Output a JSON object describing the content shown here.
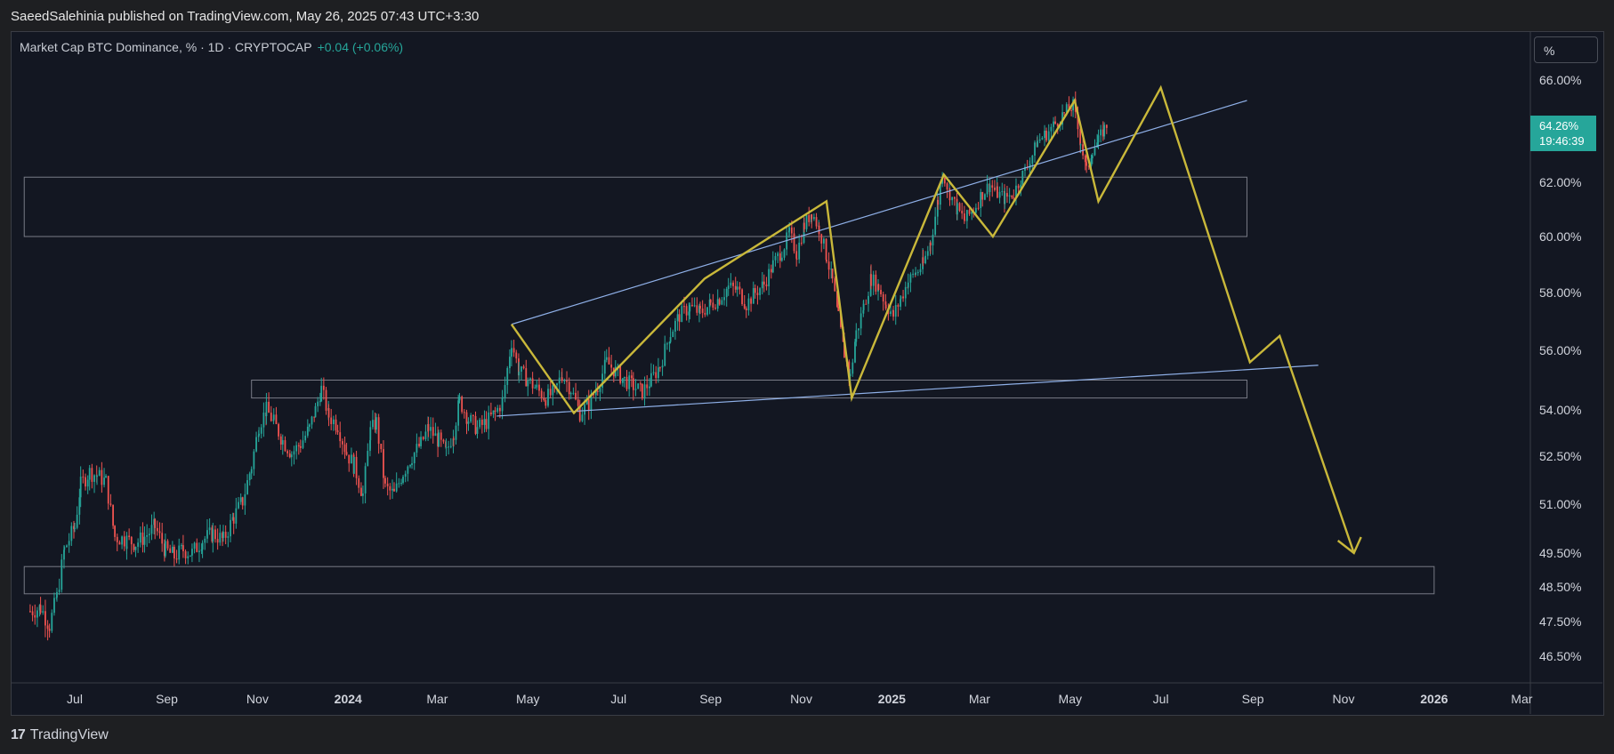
{
  "header": {
    "published_text": "SaeedSalehinia published on TradingView.com, May 26, 2025 07:43 UTC+3:30"
  },
  "legend": {
    "symbol_text": "Market Cap BTC Dominance, % · 1D · CRYPTOCAP",
    "change_text": "+0.04 (+0.06%)"
  },
  "scale_button": {
    "label": "%"
  },
  "last_price": {
    "value": "64.26%",
    "countdown": "19:46:39"
  },
  "footer": {
    "brand": "TradingView",
    "logo_glyph": "17"
  },
  "colors": {
    "background": "#131722",
    "page": "#1e1f22",
    "up": "#26a69a",
    "down": "#ef5350",
    "trendline": "#8fb0e8",
    "projection": "#c9b83a",
    "zone": "#787b86",
    "axis_text": "#d1d4dc"
  },
  "chart_data": {
    "type": "candlestick",
    "x_tick_labels": [
      "Jul",
      "Sep",
      "Nov",
      "2024",
      "Mar",
      "May",
      "Jul",
      "Sep",
      "Nov",
      "2025",
      "Mar",
      "May",
      "Jul",
      "Sep",
      "Nov",
      "2026",
      "Mar"
    ],
    "x_ticks_t": [
      "2023-07",
      "2023-09",
      "2023-11",
      "2024-01",
      "2024-03",
      "2024-05",
      "2024-07",
      "2024-09",
      "2024-11",
      "2025-01",
      "2025-03",
      "2025-05",
      "2025-07",
      "2025-09",
      "2025-11",
      "2026-01",
      "2026-03"
    ],
    "y_tick_labels": [
      "66.00%",
      "62.00%",
      "60.00%",
      "58.00%",
      "56.00%",
      "54.00%",
      "52.50%",
      "51.00%",
      "49.50%",
      "48.50%",
      "47.50%",
      "46.50%"
    ],
    "y_tick_values": [
      66,
      62,
      60,
      58,
      56,
      54,
      52.5,
      51,
      49.5,
      48.5,
      47.5,
      46.5
    ],
    "price_series": [
      [
        "2023-06-01",
        47.8
      ],
      [
        "2023-06-08",
        47.9
      ],
      [
        "2023-06-14",
        47.4
      ],
      [
        "2023-06-19",
        48.2
      ],
      [
        "2023-06-24",
        49.6
      ],
      [
        "2023-07-01",
        50.3
      ],
      [
        "2023-07-05",
        51.6
      ],
      [
        "2023-07-11",
        52.0
      ],
      [
        "2023-07-16",
        51.9
      ],
      [
        "2023-07-22",
        51.7
      ],
      [
        "2023-07-28",
        50.0
      ],
      [
        "2023-08-05",
        49.9
      ],
      [
        "2023-08-11",
        49.8
      ],
      [
        "2023-08-17",
        50.0
      ],
      [
        "2023-08-24",
        50.3
      ],
      [
        "2023-08-31",
        49.6
      ],
      [
        "2023-09-06",
        49.4
      ],
      [
        "2023-09-12",
        49.6
      ],
      [
        "2023-09-18",
        49.5
      ],
      [
        "2023-09-25",
        49.9
      ],
      [
        "2023-10-02",
        50.1
      ],
      [
        "2023-10-09",
        49.9
      ],
      [
        "2023-10-16",
        50.6
      ],
      [
        "2023-10-22",
        51.1
      ],
      [
        "2023-10-28",
        52.2
      ],
      [
        "2023-11-02",
        53.5
      ],
      [
        "2023-11-07",
        54.0
      ],
      [
        "2023-11-12",
        53.6
      ],
      [
        "2023-11-18",
        53.0
      ],
      [
        "2023-11-24",
        52.6
      ],
      [
        "2023-11-30",
        52.9
      ],
      [
        "2023-12-06",
        53.4
      ],
      [
        "2023-12-10",
        54.0
      ],
      [
        "2023-12-14",
        54.7
      ],
      [
        "2023-12-19",
        53.8
      ],
      [
        "2023-12-25",
        53.5
      ],
      [
        "2023-12-31",
        52.6
      ],
      [
        "2024-01-05",
        52.2
      ],
      [
        "2024-01-11",
        51.3
      ],
      [
        "2024-01-16",
        53.3
      ],
      [
        "2024-01-20",
        53.6
      ],
      [
        "2024-01-26",
        51.5
      ],
      [
        "2024-02-01",
        51.3
      ],
      [
        "2024-02-07",
        52.0
      ],
      [
        "2024-02-13",
        52.5
      ],
      [
        "2024-02-19",
        52.9
      ],
      [
        "2024-02-24",
        53.4
      ],
      [
        "2024-03-02",
        53.0
      ],
      [
        "2024-03-07",
        52.6
      ],
      [
        "2024-03-12",
        53.3
      ],
      [
        "2024-03-16",
        54.3
      ],
      [
        "2024-03-22",
        53.7
      ],
      [
        "2024-03-28",
        53.4
      ],
      [
        "2024-04-03",
        53.6
      ],
      [
        "2024-04-09",
        53.9
      ],
      [
        "2024-04-14",
        54.3
      ],
      [
        "2024-04-20",
        56.3
      ],
      [
        "2024-04-25",
        55.3
      ],
      [
        "2024-05-01",
        55.0
      ],
      [
        "2024-05-07",
        54.7
      ],
      [
        "2024-05-13",
        54.4
      ],
      [
        "2024-05-19",
        54.6
      ],
      [
        "2024-05-24",
        55.2
      ],
      [
        "2024-05-30",
        54.7
      ],
      [
        "2024-06-05",
        53.9
      ],
      [
        "2024-06-11",
        54.2
      ],
      [
        "2024-06-17",
        54.8
      ],
      [
        "2024-06-23",
        55.6
      ],
      [
        "2024-06-29",
        55.3
      ],
      [
        "2024-07-05",
        55.0
      ],
      [
        "2024-07-11",
        54.8
      ],
      [
        "2024-07-17",
        54.6
      ],
      [
        "2024-07-23",
        55.0
      ],
      [
        "2024-07-29",
        55.5
      ],
      [
        "2024-08-05",
        56.6
      ],
      [
        "2024-08-11",
        57.2
      ],
      [
        "2024-08-18",
        57.5
      ],
      [
        "2024-08-25",
        57.3
      ],
      [
        "2024-09-01",
        57.6
      ],
      [
        "2024-09-07",
        57.8
      ],
      [
        "2024-09-13",
        58.2
      ],
      [
        "2024-09-19",
        58.1
      ],
      [
        "2024-09-25",
        57.6
      ],
      [
        "2024-10-01",
        58.0
      ],
      [
        "2024-10-07",
        58.3
      ],
      [
        "2024-10-13",
        59.0
      ],
      [
        "2024-10-19",
        59.5
      ],
      [
        "2024-10-24",
        60.1
      ],
      [
        "2024-10-29",
        59.4
      ],
      [
        "2024-11-03",
        60.4
      ],
      [
        "2024-11-08",
        60.9
      ],
      [
        "2024-11-13",
        60.3
      ],
      [
        "2024-11-18",
        59.3
      ],
      [
        "2024-11-22",
        58.4
      ],
      [
        "2024-11-26",
        57.1
      ],
      [
        "2024-11-30",
        55.9
      ],
      [
        "2024-12-04",
        55.1
      ],
      [
        "2024-12-08",
        56.6
      ],
      [
        "2024-12-13",
        57.5
      ],
      [
        "2024-12-18",
        58.5
      ],
      [
        "2024-12-23",
        58.2
      ],
      [
        "2024-12-28",
        57.6
      ],
      [
        "2025-01-02",
        57.2
      ],
      [
        "2025-01-07",
        57.8
      ],
      [
        "2025-01-12",
        58.4
      ],
      [
        "2025-01-17",
        58.7
      ],
      [
        "2025-01-22",
        59.0
      ],
      [
        "2025-01-27",
        59.8
      ],
      [
        "2025-02-01",
        61.3
      ],
      [
        "2025-02-04",
        62.4
      ],
      [
        "2025-02-09",
        61.6
      ],
      [
        "2025-02-14",
        61.0
      ],
      [
        "2025-02-19",
        60.6
      ],
      [
        "2025-02-25",
        61.0
      ],
      [
        "2025-03-03",
        61.6
      ],
      [
        "2025-03-08",
        61.9
      ],
      [
        "2025-03-13",
        61.6
      ],
      [
        "2025-03-18",
        61.4
      ],
      [
        "2025-03-24",
        61.6
      ],
      [
        "2025-03-30",
        62.3
      ],
      [
        "2025-04-04",
        62.8
      ],
      [
        "2025-04-09",
        63.6
      ],
      [
        "2025-04-15",
        63.9
      ],
      [
        "2025-04-21",
        64.3
      ],
      [
        "2025-04-27",
        64.7
      ],
      [
        "2025-05-03",
        65.0
      ],
      [
        "2025-05-08",
        63.6
      ],
      [
        "2025-05-12",
        62.4
      ],
      [
        "2025-05-16",
        63.3
      ],
      [
        "2025-05-20",
        63.6
      ],
      [
        "2025-05-24",
        64.1
      ],
      [
        "2025-05-26",
        64.26
      ]
    ],
    "trendlines": [
      {
        "name": "upper",
        "points": [
          [
            "2024-04-20",
            56.9
          ],
          [
            "2025-08-28",
            66.8
          ]
        ]
      },
      {
        "name": "lower",
        "points": [
          [
            "2024-04-10",
            53.8
          ],
          [
            "2025-10-15",
            55.5
          ]
        ]
      }
    ],
    "projection_path": [
      [
        "2024-04-20",
        56.9
      ],
      [
        "2024-06-01",
        53.9
      ],
      [
        "2024-08-28",
        58.5
      ],
      [
        "2024-11-18",
        61.3
      ],
      [
        "2024-12-05",
        54.4
      ],
      [
        "2025-02-05",
        62.3
      ],
      [
        "2025-03-10",
        60.0
      ],
      [
        "2025-05-04",
        65.2
      ],
      [
        "2025-05-20",
        61.3
      ],
      [
        "2025-07-01",
        66.3
      ],
      [
        "2025-08-30",
        55.6
      ],
      [
        "2025-09-19",
        56.5
      ],
      [
        "2025-11-08",
        49.5
      ]
    ],
    "projection_arrow_end": [
      "2025-11-08",
      49.5
    ],
    "zones": [
      {
        "t0": "2023-05-28",
        "t1": "2025-08-28",
        "top": 62.2,
        "bottom": 60.0
      },
      {
        "t0": "2023-10-28",
        "t1": "2025-08-28",
        "top": 55.0,
        "bottom": 54.4
      },
      {
        "t0": "2023-05-28",
        "t1": "2026-01-01",
        "top": 49.1,
        "bottom": 48.3
      }
    ]
  }
}
